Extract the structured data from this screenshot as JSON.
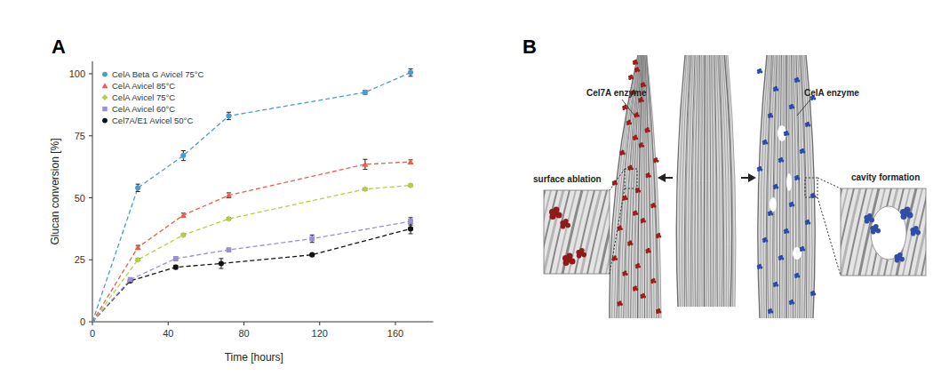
{
  "chart_data": {
    "type": "line",
    "xlabel": "Time [hours]",
    "ylabel": "Glucan conversion [%]",
    "xlim": [
      0,
      180
    ],
    "xticks": [
      0,
      40,
      80,
      120,
      160
    ],
    "ylim": [
      0,
      105
    ],
    "yticks": [
      0,
      25,
      50,
      75,
      100
    ],
    "legend": "top-left",
    "grid": false,
    "series": [
      {
        "name": "CelA Beta G Avicel 75°C",
        "color": "#4a9ad4",
        "marker": "circle",
        "line_style": "dashed",
        "x": [
          0,
          24,
          48,
          72,
          144,
          168
        ],
        "values": [
          0,
          54,
          67,
          83,
          92.5,
          100.5
        ],
        "errors": [
          0,
          1.5,
          2,
          1.5,
          0.8,
          1.5
        ]
      },
      {
        "name": "CelA Avicel 85°C",
        "color": "#e8604c",
        "marker": "triangle",
        "line_style": "dashed",
        "x": [
          0,
          24,
          48,
          72,
          144,
          168
        ],
        "values": [
          0,
          30,
          43,
          51,
          63.5,
          64.5
        ],
        "errors": [
          0,
          0.8,
          0.8,
          1,
          2,
          0.8
        ]
      },
      {
        "name": "CelA Avicel 75°C",
        "color": "#b5cf45",
        "marker": "diamond",
        "line_style": "dashed",
        "x": [
          0,
          24,
          48,
          72,
          144,
          168
        ],
        "values": [
          0,
          25,
          35,
          41.5,
          53.5,
          55
        ],
        "errors": [
          0,
          0.5,
          0.5,
          0.5,
          0.5,
          0.5
        ]
      },
      {
        "name": "CelA Avicel 60°C",
        "color": "#9b8ed2",
        "marker": "square",
        "line_style": "dashed",
        "x": [
          0,
          20,
          44,
          72,
          116,
          168
        ],
        "values": [
          0,
          17,
          25.5,
          29,
          33.5,
          40.5
        ],
        "errors": [
          0,
          0.5,
          0.8,
          0.5,
          1.5,
          1.5
        ]
      },
      {
        "name": "Cel7A/E1 Avicel 50°C",
        "color": "#111111",
        "marker": "circle",
        "line_style": "dashed",
        "x": [
          0,
          20,
          44,
          68,
          116,
          168
        ],
        "values": [
          0,
          16.5,
          22,
          23.5,
          27,
          37.5
        ],
        "errors": [
          0,
          0.5,
          0.8,
          2,
          0.5,
          2
        ]
      }
    ]
  },
  "panel_labels": [
    "A",
    "B"
  ],
  "diagram": {
    "cel7a_label": "Cel7A enzyme",
    "cela_label": "CelA enzyme",
    "left_inset": "surface ablation",
    "right_inset": "cavity formation"
  }
}
